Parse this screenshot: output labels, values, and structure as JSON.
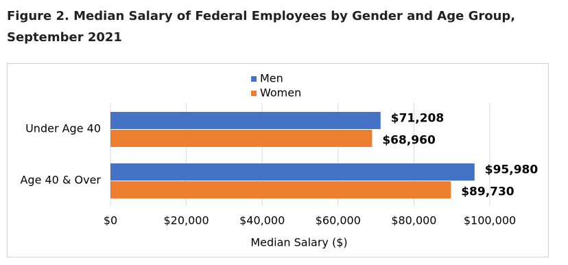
{
  "chart_data": {
    "type": "bar",
    "orientation": "horizontal",
    "title": "Figure 2. Median Salary of Federal Employees by Gender and Age Group, September 2021",
    "categories": [
      "Under Age 40",
      "Age 40 & Over"
    ],
    "series": [
      {
        "name": "Men",
        "color": "#4472c4",
        "values": [
          71208,
          95980
        ],
        "value_labels": [
          "$71,208",
          "$95,980"
        ]
      },
      {
        "name": "Women",
        "color": "#ed7d31",
        "values": [
          68960,
          89730
        ],
        "value_labels": [
          "$68,960",
          "$89,730"
        ]
      }
    ],
    "xlabel": "Median Salary ($)",
    "xlim": [
      0,
      100000
    ],
    "xticks": [
      {
        "value": 0,
        "label": "$0"
      },
      {
        "value": 20000,
        "label": "$20,000"
      },
      {
        "value": 40000,
        "label": "$40,000"
      },
      {
        "value": 60000,
        "label": "$60,000"
      },
      {
        "value": 80000,
        "label": "$80,000"
      },
      {
        "value": 100000,
        "label": "$100,000"
      }
    ],
    "grid": true,
    "legend": "top"
  }
}
